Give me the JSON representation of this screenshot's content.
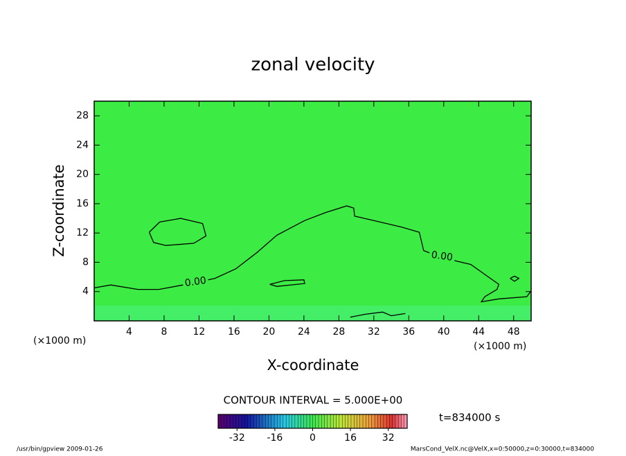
{
  "chart_data": {
    "type": "contour",
    "title": "zonal velocity",
    "xlabel": "X-coordinate",
    "ylabel": "Z-coordinate",
    "x_unit": "(×1000 m)",
    "xlim": [
      0,
      50
    ],
    "ylim": [
      0,
      30
    ],
    "xticks": [
      4,
      8,
      12,
      16,
      20,
      24,
      28,
      32,
      36,
      40,
      44,
      48
    ],
    "yticks": [
      4,
      8,
      12,
      16,
      20,
      24,
      28
    ],
    "fill_color": "#3cec44",
    "line_color": "#000000",
    "contours": [
      {
        "level": {
          "value": 0,
          "label": "0.00"
        },
        "paths": [
          {
            "x": [
              0,
              1.9,
              5.0,
              7.4,
              10.6,
              13.8,
              16.2,
              18.6,
              20.9,
              24.1,
              26.5,
              28.9,
              29.7,
              29.8,
              32.0,
              35.2,
              37.2,
              37.7,
              39.9,
              43.1,
              45.1,
              46.3,
              46.1,
              44.7,
              44.3,
              46.3,
              49.5,
              50
            ],
            "z": [
              4.5,
              4.9,
              4.3,
              4.3,
              5.0,
              5.8,
              7.1,
              9.3,
              11.7,
              13.7,
              14.8,
              15.7,
              15.4,
              14.3,
              13.7,
              12.8,
              12.1,
              9.6,
              8.6,
              7.7,
              6.0,
              5.0,
              4.3,
              3.3,
              2.6,
              3.0,
              3.3,
              4.1
            ]
          },
          {
            "x": [
              6.3,
              6.8,
              8.2,
              11.4,
              12.8,
              12.4,
              9.9,
              7.5,
              6.3
            ],
            "z": [
              12.1,
              10.7,
              10.3,
              10.6,
              11.6,
              13.3,
              14.0,
              13.5,
              12.1
            ]
          },
          {
            "x": [
              20.1,
              20.9,
              24.1,
              24.0,
              21.8,
              20.1
            ],
            "z": [
              5.0,
              4.7,
              5.1,
              5.6,
              5.5,
              5.0
            ]
          },
          {
            "x": [
              47.6,
              48.1,
              48.6,
              48.1,
              47.6
            ],
            "z": [
              5.8,
              6.1,
              5.8,
              5.4,
              5.8
            ]
          },
          {
            "x": [
              29.3,
              31.0,
              33.0,
              34.0,
              35.6
            ],
            "z": [
              0.5,
              0.9,
              1.2,
              0.7,
              1.0
            ]
          }
        ],
        "label_positions": [
          {
            "x": 11.6,
            "z": 5.3
          },
          {
            "x": 39.8,
            "z": 8.8
          }
        ]
      }
    ],
    "contour_interval": "CONTOUR INTERVAL = 5.000E+00",
    "time_label": "t=834000 s",
    "colorbar": {
      "clim": [
        -40,
        40
      ],
      "ticks": [
        -32,
        -16,
        0,
        16,
        32
      ]
    },
    "footer_left": "/usr/bin/gpview  2009-01-26",
    "footer_right": "MarsCond_VelX.nc@VelX,x=0:50000,z=0:30000,t=834000"
  }
}
